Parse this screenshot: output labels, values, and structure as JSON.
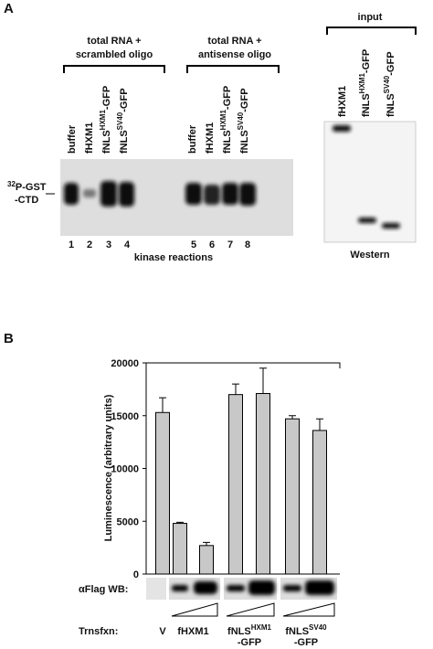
{
  "panel_a": {
    "label": "A",
    "group_titles": [
      [
        "total RNA +",
        "scrambled oligo"
      ],
      [
        "total RNA +",
        "antisense oligo"
      ]
    ],
    "input_title": "input",
    "lanes_scrambled": [
      {
        "text": "buffer"
      },
      {
        "text": "fHXM1"
      },
      {
        "text": "fNLS",
        "sup": "HXM1",
        "suffix": "-GFP"
      },
      {
        "text": "fNLS",
        "sup": "SV40",
        "suffix": "-GFP"
      }
    ],
    "lanes_antisense": [
      {
        "text": "buffer"
      },
      {
        "text": "fHXM1"
      },
      {
        "text": "fNLS",
        "sup": "HXM1",
        "suffix": "-GFP"
      },
      {
        "text": "fNLS",
        "sup": "SV40",
        "suffix": "-GFP"
      }
    ],
    "lanes_input": [
      {
        "text": "fHXM1"
      },
      {
        "text": "fNLS",
        "sup": "HXM1",
        "suffix": "-GFP"
      },
      {
        "text": "fNLS",
        "sup": "SV40",
        "suffix": "-GFP"
      }
    ],
    "probe": {
      "sup": "32",
      "text": "P-GST",
      "line2": "-CTD"
    },
    "lane_numbers": [
      1,
      2,
      3,
      4,
      5,
      6,
      7,
      8
    ],
    "kinase_label": "kinase reactions",
    "western_label": "Western"
  },
  "chart_data": {
    "type": "bar",
    "panel_label": "B",
    "ylabel": "Luminescence (arbitrary units)",
    "categories": [
      {
        "text": "V"
      },
      {
        "text": "fHXM1"
      },
      null,
      {
        "text": "fNLS",
        "sup": "HXM1",
        "suffix": "-GFP"
      },
      null,
      {
        "text": "fNLS",
        "sup": "SV40",
        "suffix": "-GFP"
      },
      null
    ],
    "values": [
      15300,
      4800,
      2700,
      17000,
      17100,
      14700,
      13600
    ],
    "errors": [
      1400,
      100,
      300,
      1000,
      2400,
      300,
      1100
    ],
    "color": "#c8c8c8",
    "ylim": [
      0,
      20000
    ],
    "yticks": [
      0,
      5000,
      10000,
      15000,
      20000
    ],
    "wb_label": "αFlag WB:",
    "xlabel": "Trnsfxn:"
  }
}
